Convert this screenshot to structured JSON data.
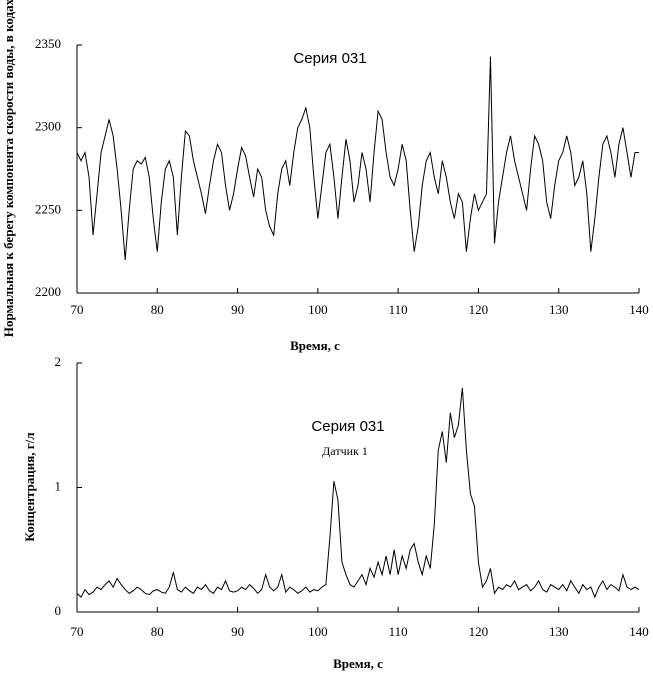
{
  "chart_data": [
    {
      "type": "line",
      "title": "Серия 031",
      "xlabel": "Время, с",
      "ylabel": "Нормальная к берегу компонента скорости воды, в кодах",
      "xlim": [
        70,
        140
      ],
      "xticks": [
        70,
        80,
        90,
        100,
        110,
        120,
        130,
        140
      ],
      "ylim": [
        2200,
        2350
      ],
      "yticks": [
        2200,
        2250,
        2300,
        2350
      ],
      "x": [
        70,
        70.5,
        71,
        71.5,
        72,
        72.5,
        73,
        73.5,
        74,
        74.5,
        75,
        75.5,
        76,
        76.5,
        77,
        77.5,
        78,
        78.5,
        79,
        79.5,
        80,
        80.5,
        81,
        81.5,
        82,
        82.5,
        83,
        83.5,
        84,
        84.5,
        85,
        85.5,
        86,
        86.5,
        87,
        87.5,
        88,
        88.5,
        89,
        89.5,
        90,
        90.5,
        91,
        91.5,
        92,
        92.5,
        93,
        93.5,
        94,
        94.5,
        95,
        95.5,
        96,
        96.5,
        97,
        97.5,
        98,
        98.5,
        99,
        99.5,
        100,
        100.5,
        101,
        101.5,
        102,
        102.5,
        103,
        103.5,
        104,
        104.5,
        105,
        105.5,
        106,
        106.5,
        107,
        107.5,
        108,
        108.5,
        109,
        109.5,
        110,
        110.5,
        111,
        111.5,
        112,
        112.5,
        113,
        113.5,
        114,
        114.5,
        115,
        115.5,
        116,
        116.5,
        117,
        117.5,
        118,
        118.5,
        119,
        119.5,
        120,
        120.5,
        121,
        121.5,
        122,
        122.5,
        123,
        123.5,
        124,
        124.5,
        125,
        125.5,
        126,
        126.5,
        127,
        127.5,
        128,
        128.5,
        129,
        129.5,
        130,
        130.5,
        131,
        131.5,
        132,
        132.5,
        133,
        133.5,
        134,
        134.5,
        135,
        135.5,
        136,
        136.5,
        137,
        137.5,
        138,
        138.5,
        139,
        139.5,
        140
      ],
      "series": [
        {
          "color": "#000000",
          "values": [
            2285,
            2280,
            2285,
            2270,
            2235,
            2260,
            2285,
            2295,
            2305,
            2295,
            2275,
            2250,
            2220,
            2250,
            2275,
            2280,
            2278,
            2282,
            2270,
            2245,
            2225,
            2255,
            2275,
            2280,
            2270,
            2235,
            2270,
            2298,
            2295,
            2280,
            2270,
            2260,
            2248,
            2265,
            2280,
            2290,
            2285,
            2265,
            2250,
            2260,
            2275,
            2288,
            2283,
            2270,
            2258,
            2275,
            2270,
            2250,
            2240,
            2235,
            2260,
            2275,
            2280,
            2265,
            2285,
            2300,
            2305,
            2312,
            2300,
            2270,
            2245,
            2265,
            2285,
            2290,
            2270,
            2245,
            2270,
            2293,
            2280,
            2255,
            2265,
            2285,
            2275,
            2255,
            2285,
            2310,
            2305,
            2285,
            2270,
            2265,
            2275,
            2290,
            2280,
            2250,
            2225,
            2240,
            2265,
            2280,
            2285,
            2270,
            2260,
            2280,
            2270,
            2255,
            2245,
            2260,
            2255,
            2225,
            2245,
            2260,
            2250,
            2255,
            2260,
            2343,
            2230,
            2255,
            2270,
            2285,
            2295,
            2280,
            2270,
            2260,
            2250,
            2275,
            2295,
            2290,
            2280,
            2255,
            2245,
            2265,
            2280,
            2285,
            2295,
            2285,
            2265,
            2270,
            2280,
            2260,
            2225,
            2245,
            2270,
            2290,
            2295,
            2285,
            2270,
            2290,
            2300,
            2285,
            2270,
            2285,
            2285
          ]
        }
      ]
    },
    {
      "type": "line",
      "title": "Серия 031",
      "subtitle": "Датчик 1",
      "xlabel": "Время, с",
      "ylabel": "Концентрация, г/л",
      "xlim": [
        70,
        140
      ],
      "xticks": [
        70,
        80,
        90,
        100,
        110,
        120,
        130,
        140
      ],
      "ylim": [
        0,
        2
      ],
      "yticks": [
        0,
        1,
        2
      ],
      "x": [
        70,
        70.5,
        71,
        71.5,
        72,
        72.5,
        73,
        73.5,
        74,
        74.5,
        75,
        75.5,
        76,
        76.5,
        77,
        77.5,
        78,
        78.5,
        79,
        79.5,
        80,
        80.5,
        81,
        81.5,
        82,
        82.5,
        83,
        83.5,
        84,
        84.5,
        85,
        85.5,
        86,
        86.5,
        87,
        87.5,
        88,
        88.5,
        89,
        89.5,
        90,
        90.5,
        91,
        91.5,
        92,
        92.5,
        93,
        93.5,
        94,
        94.5,
        95,
        95.5,
        96,
        96.5,
        97,
        97.5,
        98,
        98.5,
        99,
        99.5,
        100,
        100.5,
        101,
        101.5,
        102,
        102.5,
        103,
        103.5,
        104,
        104.5,
        105,
        105.5,
        106,
        106.5,
        107,
        107.5,
        108,
        108.5,
        109,
        109.5,
        110,
        110.5,
        111,
        111.5,
        112,
        112.5,
        113,
        113.5,
        114,
        114.5,
        115,
        115.5,
        116,
        116.5,
        117,
        117.5,
        118,
        118.5,
        119,
        119.5,
        120,
        120.5,
        121,
        121.5,
        122,
        122.5,
        123,
        123.5,
        124,
        124.5,
        125,
        125.5,
        126,
        126.5,
        127,
        127.5,
        128,
        128.5,
        129,
        129.5,
        130,
        130.5,
        131,
        131.5,
        132,
        132.5,
        133,
        133.5,
        134,
        134.5,
        135,
        135.5,
        136,
        136.5,
        137,
        137.5,
        138,
        138.5,
        139,
        139.5,
        140
      ],
      "series": [
        {
          "color": "#000000",
          "values": [
            0.15,
            0.12,
            0.18,
            0.14,
            0.16,
            0.2,
            0.18,
            0.22,
            0.25,
            0.2,
            0.27,
            0.22,
            0.18,
            0.15,
            0.17,
            0.2,
            0.18,
            0.15,
            0.14,
            0.17,
            0.18,
            0.16,
            0.15,
            0.2,
            0.32,
            0.18,
            0.16,
            0.2,
            0.17,
            0.15,
            0.2,
            0.18,
            0.22,
            0.17,
            0.15,
            0.2,
            0.18,
            0.25,
            0.17,
            0.16,
            0.17,
            0.2,
            0.18,
            0.22,
            0.19,
            0.15,
            0.18,
            0.3,
            0.2,
            0.17,
            0.2,
            0.3,
            0.16,
            0.2,
            0.18,
            0.15,
            0.17,
            0.2,
            0.16,
            0.18,
            0.17,
            0.2,
            0.22,
            0.6,
            1.05,
            0.9,
            0.4,
            0.3,
            0.22,
            0.2,
            0.25,
            0.3,
            0.22,
            0.35,
            0.28,
            0.4,
            0.3,
            0.45,
            0.3,
            0.5,
            0.3,
            0.45,
            0.35,
            0.5,
            0.55,
            0.4,
            0.3,
            0.45,
            0.35,
            0.7,
            1.3,
            1.45,
            1.2,
            1.6,
            1.4,
            1.5,
            1.8,
            1.3,
            0.95,
            0.85,
            0.4,
            0.2,
            0.25,
            0.35,
            0.15,
            0.2,
            0.18,
            0.22,
            0.2,
            0.25,
            0.18,
            0.2,
            0.22,
            0.17,
            0.2,
            0.25,
            0.18,
            0.16,
            0.22,
            0.2,
            0.18,
            0.22,
            0.17,
            0.25,
            0.2,
            0.15,
            0.22,
            0.18,
            0.2,
            0.12,
            0.2,
            0.25,
            0.18,
            0.22,
            0.2,
            0.17,
            0.3,
            0.2,
            0.18,
            0.2,
            0.18
          ]
        }
      ]
    }
  ]
}
